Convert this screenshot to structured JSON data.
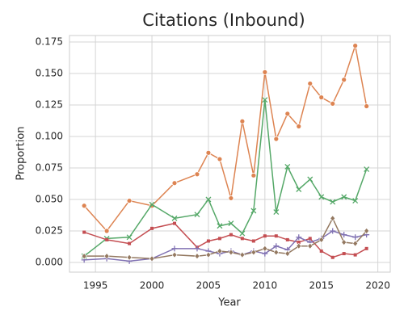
{
  "chart_data": {
    "type": "line",
    "title": "Citations (Inbound)",
    "x_label": "Year",
    "y_label": "Proportion",
    "x": [
      1994,
      1996,
      1998,
      2000,
      2002,
      2004,
      2005,
      2006,
      2007,
      2008,
      2009,
      2010,
      2011,
      2012,
      2013,
      2014,
      2015,
      2016,
      2017,
      2018,
      2019
    ],
    "series": [
      {
        "color": "#dd8452",
        "marker": "o",
        "values": [
          0.045,
          0.025,
          0.049,
          0.045,
          0.063,
          0.07,
          0.087,
          0.082,
          0.051,
          0.112,
          0.069,
          0.151,
          0.098,
          0.118,
          0.108,
          0.142,
          0.131,
          0.126,
          0.145,
          0.172,
          0.124
        ]
      },
      {
        "color": "#55a868",
        "marker": "x",
        "values": [
          0.005,
          0.019,
          0.02,
          0.046,
          0.035,
          0.038,
          0.05,
          0.029,
          0.031,
          0.023,
          0.041,
          0.129,
          0.04,
          0.076,
          0.058,
          0.066,
          0.052,
          0.048,
          0.052,
          0.049,
          0.074
        ]
      },
      {
        "color": "#c44e52",
        "marker": "s",
        "values": [
          0.024,
          0.018,
          0.015,
          0.027,
          0.031,
          0.012,
          0.017,
          0.019,
          0.022,
          0.019,
          0.017,
          0.021,
          0.021,
          0.018,
          0.016,
          0.019,
          0.009,
          0.004,
          0.007,
          0.006,
          0.011
        ]
      },
      {
        "color": "#8172b3",
        "marker": "+",
        "values": [
          0.002,
          0.003,
          0.001,
          0.003,
          0.011,
          0.011,
          0.009,
          0.007,
          0.009,
          0.006,
          0.009,
          0.007,
          0.013,
          0.01,
          0.02,
          0.016,
          0.019,
          0.025,
          0.022,
          0.02,
          0.022
        ]
      },
      {
        "color": "#937860",
        "marker": "D",
        "values": [
          0.005,
          0.005,
          0.004,
          0.003,
          0.006,
          0.005,
          0.006,
          0.009,
          0.008,
          0.006,
          0.008,
          0.011,
          0.008,
          0.007,
          0.013,
          0.013,
          0.018,
          0.035,
          0.016,
          0.015,
          0.025
        ]
      }
    ],
    "xlim": [
      1992.7,
      2021.1
    ],
    "xticks": [
      1995,
      2000,
      2005,
      2010,
      2015,
      2020
    ],
    "ylim": [
      -0.0077,
      0.1801
    ],
    "yticks": [
      {
        "value": 0,
        "label": "0.000"
      },
      0.025,
      {
        "value": 0.05,
        "label": "0.050"
      },
      0.075,
      {
        "value": 0.1,
        "label": "0.100"
      },
      0.125,
      {
        "value": 0.15,
        "label": "0.150"
      },
      0.175
    ],
    "grid": true
  }
}
